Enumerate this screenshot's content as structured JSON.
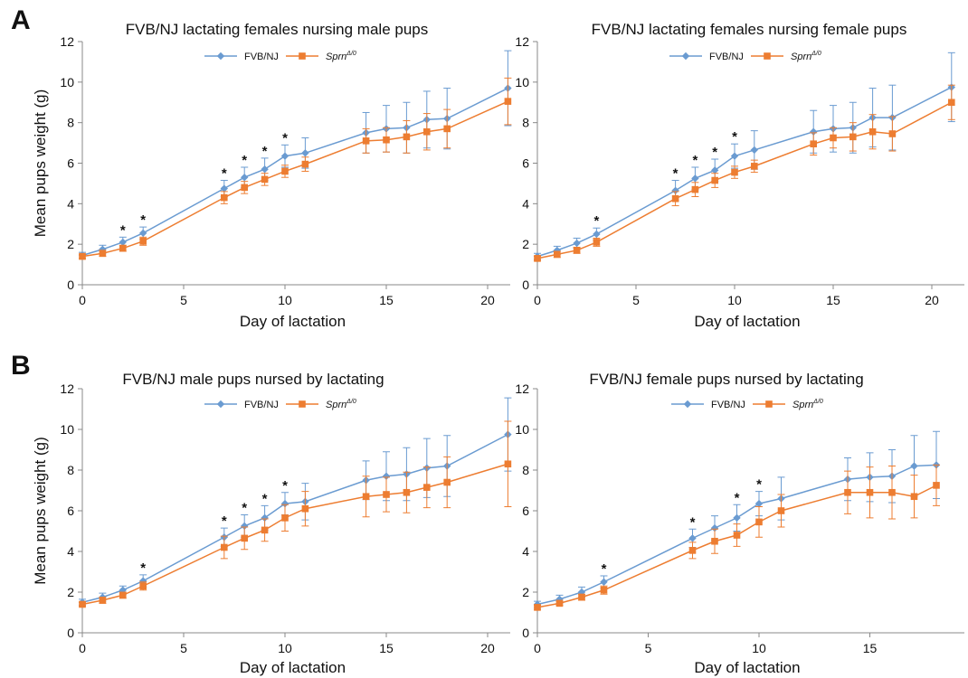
{
  "figure": {
    "panel_labels": [
      "A",
      "B"
    ],
    "xlabel": "Day of lactation",
    "ylabel": "Mean pups  weight (g)",
    "colors": {
      "fvb": "#6a9bd1",
      "sprn": "#ed7d31"
    }
  },
  "chart_data": [
    {
      "type": "line",
      "title": "FVB/NJ lactating females nursing male pups",
      "xlabel": "Day of lactation",
      "ylabel": "Mean pups  weight (g)",
      "xlim": [
        0,
        22
      ],
      "ylim": [
        0,
        12
      ],
      "xticks": [
        0,
        5,
        10,
        15,
        20
      ],
      "yticks": [
        0,
        2,
        4,
        6,
        8,
        10,
        12
      ],
      "legend": {
        "position": "top-center",
        "entries": [
          "FVB/NJ",
          "SprnΔ/0"
        ]
      },
      "significance_days": [
        2,
        3,
        7,
        8,
        9,
        10
      ],
      "series": [
        {
          "name": "FVB/NJ",
          "color": "#6a9bd1",
          "marker": "diamond",
          "x": [
            0,
            1,
            2,
            3,
            7,
            8,
            9,
            10,
            11,
            14,
            15,
            16,
            17,
            18,
            21
          ],
          "y": [
            1.45,
            1.75,
            2.1,
            2.55,
            4.75,
            5.3,
            5.7,
            6.35,
            6.5,
            7.5,
            7.7,
            7.75,
            8.15,
            8.2,
            9.7
          ],
          "err": [
            0.15,
            0.2,
            0.25,
            0.3,
            0.4,
            0.5,
            0.55,
            0.55,
            0.75,
            1.0,
            1.15,
            1.25,
            1.4,
            1.5,
            1.85
          ]
        },
        {
          "name": "SprnΔ/0",
          "color": "#ed7d31",
          "marker": "square",
          "x": [
            0,
            1,
            2,
            3,
            7,
            8,
            9,
            10,
            11,
            14,
            15,
            16,
            17,
            18,
            21
          ],
          "y": [
            1.4,
            1.55,
            1.8,
            2.15,
            4.3,
            4.8,
            5.2,
            5.6,
            5.95,
            7.1,
            7.15,
            7.3,
            7.55,
            7.7,
            9.05
          ],
          "err": [
            0.1,
            0.15,
            0.15,
            0.2,
            0.3,
            0.3,
            0.3,
            0.3,
            0.35,
            0.6,
            0.6,
            0.8,
            0.9,
            0.95,
            1.15
          ]
        }
      ]
    },
    {
      "type": "line",
      "title": "FVB/NJ lactating females nursing female pups",
      "xlabel": "Day of lactation",
      "ylabel": "",
      "xlim": [
        0,
        22
      ],
      "ylim": [
        0,
        12
      ],
      "xticks": [
        0,
        5,
        10,
        15,
        20
      ],
      "yticks": [
        0,
        2,
        4,
        6,
        8,
        10,
        12
      ],
      "legend": {
        "position": "top-center",
        "entries": [
          "FVB/NJ",
          "SprnΔ/0"
        ]
      },
      "significance_days": [
        3,
        7,
        8,
        9,
        10
      ],
      "series": [
        {
          "name": "FVB/NJ",
          "color": "#6a9bd1",
          "marker": "diamond",
          "x": [
            0,
            1,
            2,
            3,
            7,
            8,
            9,
            10,
            11,
            14,
            15,
            16,
            17,
            18,
            21
          ],
          "y": [
            1.4,
            1.7,
            2.05,
            2.5,
            4.65,
            5.25,
            5.65,
            6.35,
            6.65,
            7.55,
            7.7,
            7.75,
            8.25,
            8.25,
            9.75
          ],
          "err": [
            0.15,
            0.2,
            0.25,
            0.3,
            0.5,
            0.55,
            0.55,
            0.6,
            0.95,
            1.05,
            1.15,
            1.25,
            1.45,
            1.6,
            1.7
          ]
        },
        {
          "name": "SprnΔ/0",
          "color": "#ed7d31",
          "marker": "square",
          "x": [
            0,
            1,
            2,
            3,
            7,
            8,
            9,
            10,
            11,
            14,
            15,
            16,
            17,
            18,
            21
          ],
          "y": [
            1.3,
            1.5,
            1.7,
            2.1,
            4.25,
            4.7,
            5.15,
            5.55,
            5.85,
            6.95,
            7.25,
            7.3,
            7.55,
            7.45,
            9.0
          ],
          "err": [
            0.1,
            0.15,
            0.15,
            0.2,
            0.35,
            0.35,
            0.35,
            0.3,
            0.3,
            0.55,
            0.5,
            0.7,
            0.85,
            0.85,
            0.85
          ]
        }
      ]
    },
    {
      "type": "line",
      "title": "FVB/NJ male pups nursed by lactating",
      "xlabel": "Day of lactation",
      "ylabel": "Mean pups  weight (g)",
      "xlim": [
        0,
        22
      ],
      "ylim": [
        0,
        12
      ],
      "xticks": [
        0,
        5,
        10,
        15,
        20
      ],
      "yticks": [
        0,
        2,
        4,
        6,
        8,
        10,
        12
      ],
      "legend": {
        "position": "top-center",
        "entries": [
          "FVB/NJ",
          "SprnΔ/0"
        ]
      },
      "significance_days": [
        3,
        7,
        8,
        9,
        10
      ],
      "series": [
        {
          "name": "FVB/NJ",
          "color": "#6a9bd1",
          "marker": "diamond",
          "x": [
            0,
            1,
            2,
            3,
            7,
            8,
            9,
            10,
            11,
            14,
            15,
            16,
            17,
            18,
            21
          ],
          "y": [
            1.5,
            1.75,
            2.1,
            2.55,
            4.7,
            5.25,
            5.65,
            6.35,
            6.45,
            7.5,
            7.7,
            7.8,
            8.1,
            8.2,
            9.75
          ],
          "err": [
            0.15,
            0.2,
            0.2,
            0.3,
            0.45,
            0.55,
            0.6,
            0.55,
            0.9,
            0.95,
            1.2,
            1.3,
            1.45,
            1.5,
            1.8
          ]
        },
        {
          "name": "SprnΔ/0",
          "color": "#ed7d31",
          "marker": "square",
          "x": [
            0,
            1,
            2,
            3,
            7,
            8,
            9,
            10,
            11,
            14,
            15,
            16,
            17,
            18,
            21
          ],
          "y": [
            1.4,
            1.6,
            1.85,
            2.3,
            4.2,
            4.65,
            5.05,
            5.65,
            6.1,
            6.7,
            6.8,
            6.9,
            7.15,
            7.4,
            8.3
          ],
          "err": [
            0.1,
            0.15,
            0.15,
            0.2,
            0.55,
            0.55,
            0.55,
            0.65,
            0.85,
            1.0,
            0.85,
            1.0,
            1.0,
            1.25,
            2.1
          ]
        }
      ]
    },
    {
      "type": "line",
      "title": "FVB/NJ female pups nursed by lactating",
      "xlabel": "Day of lactation",
      "ylabel": "",
      "xlim": [
        0,
        19
      ],
      "ylim": [
        0,
        12
      ],
      "xticks": [
        0,
        5,
        10,
        15
      ],
      "yticks": [
        0,
        2,
        4,
        6,
        8,
        10,
        12
      ],
      "legend": {
        "position": "top-center",
        "entries": [
          "FVB/NJ",
          "SprnΔ/0"
        ]
      },
      "significance_days": [
        3,
        7,
        9,
        10
      ],
      "series": [
        {
          "name": "FVB/NJ",
          "color": "#6a9bd1",
          "marker": "diamond",
          "x": [
            0,
            1,
            2,
            3,
            7,
            8,
            9,
            10,
            11,
            14,
            15,
            16,
            17,
            18
          ],
          "y": [
            1.4,
            1.65,
            2.0,
            2.5,
            4.65,
            5.15,
            5.65,
            6.35,
            6.6,
            7.55,
            7.65,
            7.7,
            8.2,
            8.25
          ],
          "err": [
            0.15,
            0.2,
            0.25,
            0.3,
            0.45,
            0.6,
            0.65,
            0.6,
            1.05,
            1.05,
            1.2,
            1.3,
            1.5,
            1.65
          ]
        },
        {
          "name": "SprnΔ/0",
          "color": "#ed7d31",
          "marker": "square",
          "x": [
            0,
            1,
            2,
            3,
            7,
            8,
            9,
            10,
            11,
            14,
            15,
            16,
            17,
            18
          ],
          "y": [
            1.25,
            1.45,
            1.75,
            2.1,
            4.05,
            4.5,
            4.8,
            5.45,
            6.0,
            6.9,
            6.9,
            6.9,
            6.7,
            7.25
          ],
          "err": [
            0.1,
            0.1,
            0.15,
            0.2,
            0.4,
            0.6,
            0.55,
            0.75,
            0.8,
            1.05,
            1.25,
            1.3,
            1.05,
            1.0
          ]
        }
      ]
    }
  ]
}
